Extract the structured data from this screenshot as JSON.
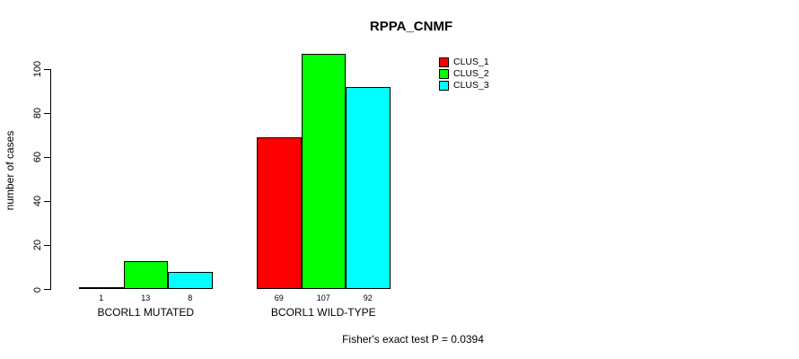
{
  "chart_data": {
    "type": "bar",
    "title": "RPPA_CNMF",
    "xlabel": "",
    "ylabel": "number of cases",
    "categories": [
      "BCORL1 MUTATED",
      "BCORL1 WILD-TYPE"
    ],
    "series": [
      {
        "name": "CLUS_1",
        "color": "#ff0000",
        "values": [
          1,
          69
        ]
      },
      {
        "name": "CLUS_2",
        "color": "#00ff00",
        "values": [
          13,
          107
        ]
      },
      {
        "name": "CLUS_3",
        "color": "#00ffff",
        "values": [
          8,
          92
        ]
      }
    ],
    "bar_value_labels": [
      [
        "1",
        "13",
        "8"
      ],
      [
        "69",
        "107",
        "92"
      ]
    ],
    "yticks": [
      0,
      20,
      40,
      60,
      80,
      100
    ],
    "ylim": [
      0,
      100
    ],
    "grid": false,
    "legend_position": "right",
    "annotation": "Fisher's exact test P = 0.0394"
  }
}
